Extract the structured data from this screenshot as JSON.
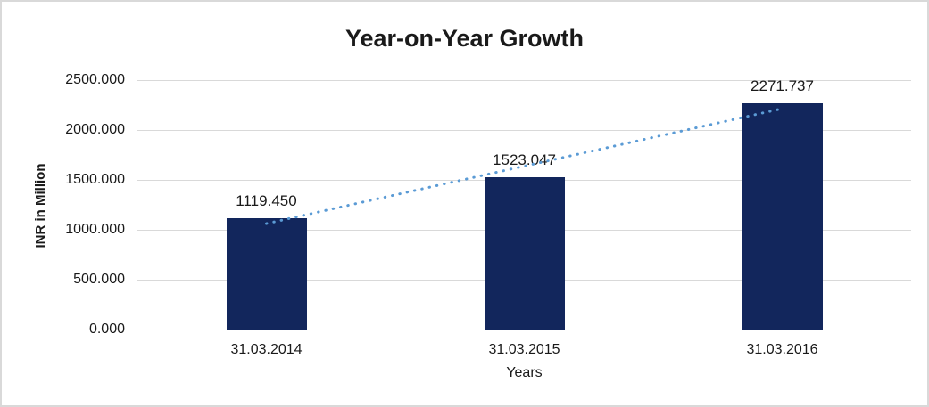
{
  "window": {
    "background": "#ffffff",
    "border_color": "#d9d9d9"
  },
  "chart_data": {
    "type": "bar",
    "title": "Year-on-Year Growth",
    "categories": [
      "31.03.2014",
      "31.03.2015",
      "31.03.2016"
    ],
    "values": [
      1119.45,
      1523.047,
      2271.737
    ],
    "value_labels": [
      "1119.450",
      "1523.047",
      "2271.737"
    ],
    "xlabel": "Years",
    "ylabel": "INR in Million",
    "ylim": [
      0,
      2500
    ],
    "ytick_interval": 500,
    "ytick_labels": [
      "0.000",
      "500.000",
      "1000.000",
      "1500.000",
      "2000.000",
      "2500.000"
    ],
    "grid": "horizontal",
    "legend": "none",
    "bar_color": "#12265c",
    "gridline_color": "#d9d9d9",
    "trendline": {
      "type": "linear",
      "style": "dotted",
      "color": "#5b9bd5"
    }
  }
}
